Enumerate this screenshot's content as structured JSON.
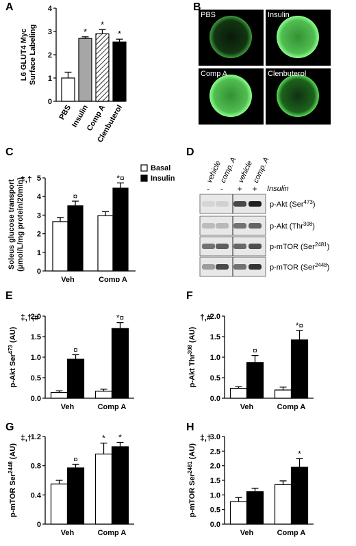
{
  "panel_letters": {
    "A": "A",
    "B": "B",
    "C": "C",
    "D": "D",
    "E": "E",
    "F": "F",
    "G": "G",
    "H": "H"
  },
  "micrographs": [
    {
      "label": "PBS"
    },
    {
      "label": "Insulin"
    },
    {
      "label": "Comp A"
    },
    {
      "label": "Clenbuterol"
    }
  ],
  "legend": {
    "basal": "Basal",
    "insulin": "Insulin"
  },
  "blot": {
    "headers": [
      "vehicle",
      "comp. A",
      "vehicle",
      "comp. A"
    ],
    "signs": [
      "-",
      "-",
      "+",
      "+"
    ],
    "sign_label": "Insulin",
    "rows": [
      {
        "name": "p-Akt (Ser",
        "sup": "473",
        "suffix": ")",
        "intensity": [
          0.08,
          0.1,
          0.75,
          0.95
        ]
      },
      {
        "name": "p-Akt (Thr",
        "sup": "308",
        "suffix": ")",
        "intensity": [
          0.2,
          0.22,
          0.55,
          0.62
        ]
      },
      {
        "name": "p-mTOR (Ser",
        "sup": "2481",
        "suffix": ")",
        "intensity": [
          0.55,
          0.65,
          0.6,
          0.72
        ]
      },
      {
        "name": "p-mTOR (Ser",
        "sup": "2448",
        "suffix": ")",
        "intensity": [
          0.35,
          0.75,
          0.55,
          0.85
        ]
      }
    ]
  },
  "colors": {
    "basal": "#ffffff",
    "insulin": "#000000",
    "bar_outline": "#000000",
    "gray_bar": "#a6a6a6"
  },
  "chart_data": [
    {
      "id": "A",
      "type": "bar",
      "categories": [
        "PBS",
        "Insulin",
        "Comp A",
        "Clenbuterol"
      ],
      "values": [
        1.0,
        2.7,
        2.9,
        2.55
      ],
      "errors": [
        0.25,
        0.07,
        0.18,
        0.12
      ],
      "fills": [
        "white",
        "gray",
        "hatch",
        "black"
      ],
      "annotations": [
        "",
        "*",
        "*",
        "*"
      ],
      "ylabel": "L6 GLUT4 Myc\nSurface Labeling",
      "ylim": [
        0,
        4
      ],
      "yticks": [
        0,
        1,
        2,
        3,
        4
      ],
      "ytick_labels": [
        "0",
        "1",
        "2",
        "3",
        "4"
      ],
      "xtick_rotate": true
    },
    {
      "id": "C",
      "type": "bar",
      "categories": [
        "Veh",
        "Comp A"
      ],
      "series": [
        {
          "name": "Basal",
          "values": [
            2.65,
            2.97
          ],
          "errors": [
            0.22,
            0.22
          ],
          "annotations": [
            "",
            ""
          ]
        },
        {
          "name": "Insulin",
          "values": [
            3.5,
            4.45
          ],
          "errors": [
            0.25,
            0.28
          ],
          "annotations": [
            "¤",
            "*¤"
          ]
        }
      ],
      "ylabel": "Soleus glucose transport\n(µmol/L/mg protein/20min)",
      "ylim": [
        0,
        5
      ],
      "yticks": [
        0,
        1,
        2,
        3,
        4,
        5
      ],
      "ytick_labels": [
        "0",
        "1",
        "2",
        "3",
        "4",
        "5"
      ],
      "sig_label": "‡,†"
    },
    {
      "id": "E",
      "type": "bar",
      "categories": [
        "Veh",
        "Comp A"
      ],
      "series": [
        {
          "name": "Basal",
          "values": [
            0.14,
            0.17
          ],
          "errors": [
            0.04,
            0.05
          ],
          "annotations": [
            "",
            ""
          ]
        },
        {
          "name": "Insulin",
          "values": [
            0.95,
            1.7
          ],
          "errors": [
            0.11,
            0.14
          ],
          "annotations": [
            "¤",
            "*¤"
          ]
        }
      ],
      "ylabel": "p-Akt Ser473 (AU)",
      "ylabel_main": "p-Akt Ser",
      "ylabel_sup": "473",
      "ylabel_tail": " (AU)",
      "ylim": [
        0,
        2.0
      ],
      "yticks": [
        0,
        0.5,
        1.0,
        1.5,
        2.0
      ],
      "ytick_labels": [
        "0.0",
        "0.5",
        "1.0",
        "1.5",
        "2.0"
      ],
      "sig_label": "‡,†,#"
    },
    {
      "id": "F",
      "type": "bar",
      "categories": [
        "Veh",
        "Comp A"
      ],
      "series": [
        {
          "name": "Basal",
          "values": [
            0.24,
            0.2
          ],
          "errors": [
            0.04,
            0.07
          ],
          "annotations": [
            "",
            ""
          ]
        },
        {
          "name": "Insulin",
          "values": [
            0.87,
            1.42
          ],
          "errors": [
            0.17,
            0.23
          ],
          "annotations": [
            "¤",
            "*¤"
          ]
        }
      ],
      "ylabel": "p-Akt Thr308 (AU)",
      "ylabel_main": "p-Akt Thr",
      "ylabel_sup": "308",
      "ylabel_tail": " (AU)",
      "ylim": [
        0,
        2.0
      ],
      "yticks": [
        0,
        0.5,
        1.0,
        1.5,
        2.0
      ],
      "ytick_labels": [
        "0.0",
        "0.5",
        "1.0",
        "1.5",
        "2.0"
      ],
      "sig_label": "†,#"
    },
    {
      "id": "G",
      "type": "bar",
      "categories": [
        "Veh",
        "Comp A"
      ],
      "series": [
        {
          "name": "Basal",
          "values": [
            0.55,
            0.96
          ],
          "errors": [
            0.05,
            0.15
          ],
          "annotations": [
            "",
            "*"
          ]
        },
        {
          "name": "Insulin",
          "values": [
            0.77,
            1.06
          ],
          "errors": [
            0.05,
            0.06
          ],
          "annotations": [
            "¤",
            "*"
          ]
        }
      ],
      "ylabel": "p-mTOR Ser2448 (AU)",
      "ylabel_main": "p-mTOR Ser",
      "ylabel_sup": "2448",
      "ylabel_tail": " (AU)",
      "ylim": [
        0,
        1.2
      ],
      "yticks": [
        0,
        0.4,
        0.8,
        1.2
      ],
      "ytick_labels": [
        "0",
        "0.4",
        "0.8",
        "1.2"
      ],
      "sig_label": "‡,†"
    },
    {
      "id": "H",
      "type": "bar",
      "categories": [
        "Veh",
        "Comp A"
      ],
      "series": [
        {
          "name": "Basal",
          "values": [
            0.77,
            1.35
          ],
          "errors": [
            0.14,
            0.13
          ],
          "annotations": [
            "",
            ""
          ]
        },
        {
          "name": "Insulin",
          "values": [
            1.11,
            1.95
          ],
          "errors": [
            0.12,
            0.29
          ],
          "annotations": [
            "",
            "*"
          ]
        }
      ],
      "ylabel": "p-mTOR Ser2481 (AU)",
      "ylabel_main": "p-mTOR Ser",
      "ylabel_sup": "2481",
      "ylabel_tail": " (AU)",
      "ylim": [
        0,
        3.0
      ],
      "yticks": [
        0,
        0.5,
        1.0,
        1.5,
        2.0,
        2.5,
        3.0
      ],
      "ytick_labels": [
        "0.0",
        "0.5",
        "1.0",
        "1.5",
        "2.0",
        "2.5",
        "3.0"
      ],
      "sig_label": "‡,†"
    }
  ]
}
